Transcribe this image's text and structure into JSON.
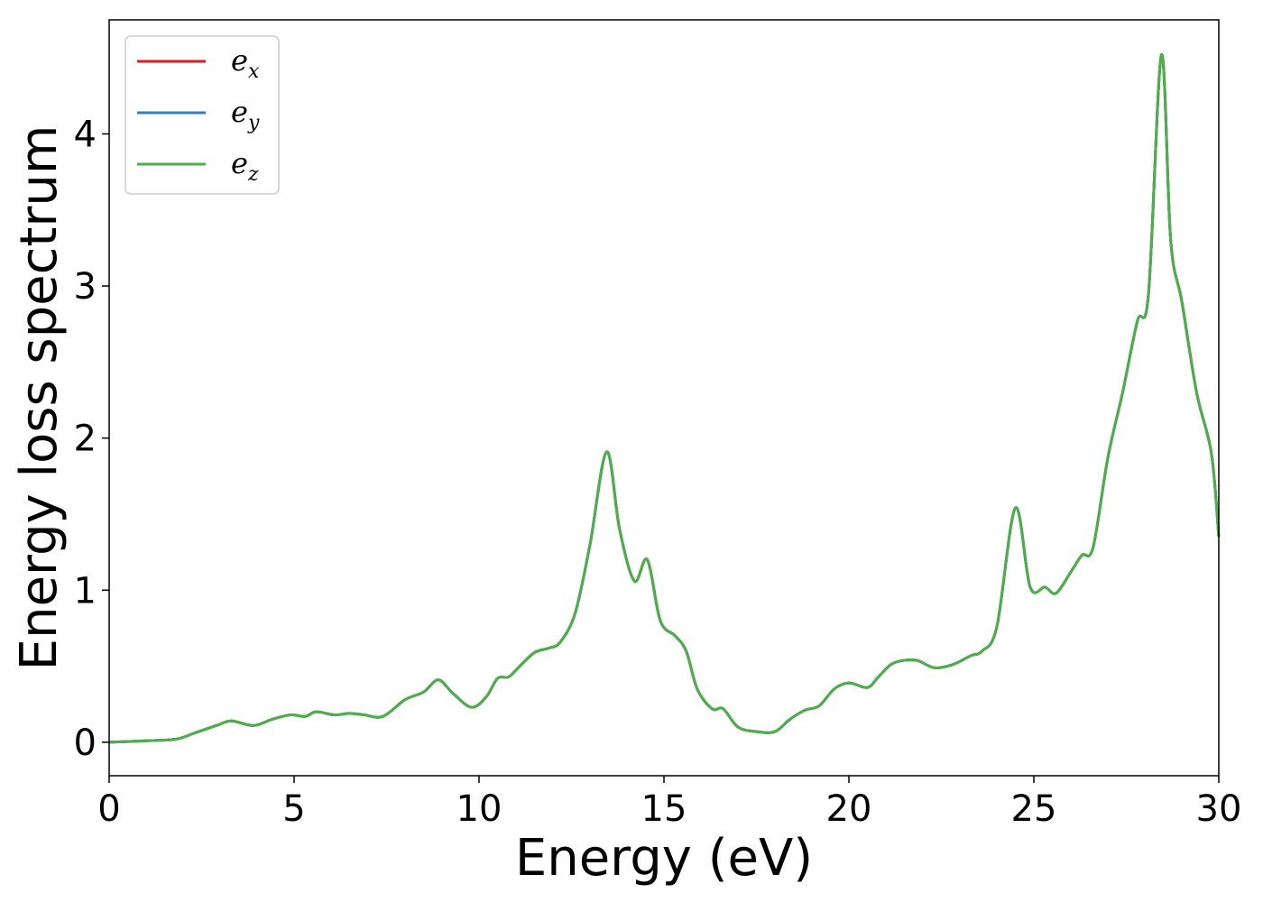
{
  "chart_data": {
    "type": "line",
    "xlabel": "Energy (eV)",
    "ylabel": "Energy loss spectrum",
    "xlim": [
      0,
      30
    ],
    "ylim": [
      -0.22,
      4.75
    ],
    "xticks": [
      "0",
      "5",
      "10",
      "15",
      "20",
      "25",
      "30"
    ],
    "yticks": [
      "0",
      "1",
      "2",
      "3",
      "4"
    ],
    "grid": false,
    "legend_position": "top-left",
    "series": [
      {
        "name_main": "e",
        "name_sub": "x",
        "color": "#e41a1c",
        "x": [
          0,
          1,
          1.8,
          2.3,
          2.9,
          3.3,
          3.9,
          4.4,
          4.9,
          5.3,
          5.6,
          6.1,
          6.5,
          6.9,
          7.4,
          8.0,
          8.5,
          8.9,
          9.3,
          9.8,
          10.2,
          10.5,
          10.8,
          11.1,
          11.5,
          11.9,
          12.2,
          12.6,
          13.0,
          13.45,
          13.8,
          14.2,
          14.55,
          14.9,
          15.3,
          15.6,
          15.9,
          16.3,
          16.6,
          17.0,
          17.5,
          18.0,
          18.4,
          18.8,
          19.2,
          19.6,
          20.0,
          20.5,
          20.8,
          21.2,
          21.8,
          22.3,
          22.8,
          23.3,
          23.6,
          24.0,
          24.5,
          24.9,
          25.3,
          25.6,
          26.0,
          26.3,
          26.6,
          27.0,
          27.4,
          27.8,
          28.1,
          28.45,
          28.7,
          29.0,
          29.4,
          29.8,
          30.0
        ],
        "values": [
          0,
          0.01,
          0.02,
          0.06,
          0.11,
          0.14,
          0.11,
          0.15,
          0.18,
          0.17,
          0.2,
          0.18,
          0.19,
          0.18,
          0.17,
          0.28,
          0.33,
          0.41,
          0.32,
          0.23,
          0.3,
          0.42,
          0.43,
          0.5,
          0.59,
          0.62,
          0.66,
          0.85,
          1.3,
          1.91,
          1.4,
          1.06,
          1.2,
          0.8,
          0.7,
          0.6,
          0.35,
          0.22,
          0.22,
          0.1,
          0.07,
          0.07,
          0.15,
          0.21,
          0.24,
          0.35,
          0.39,
          0.36,
          0.43,
          0.52,
          0.54,
          0.49,
          0.51,
          0.57,
          0.6,
          0.76,
          1.54,
          1.02,
          1.02,
          0.98,
          1.12,
          1.23,
          1.28,
          1.87,
          2.3,
          2.77,
          2.95,
          4.52,
          3.3,
          2.9,
          2.3,
          1.9,
          1.35
        ]
      },
      {
        "name_main": "e",
        "name_sub": "y",
        "color": "#377eb8",
        "x": [
          0,
          1,
          1.8,
          2.3,
          2.9,
          3.3,
          3.9,
          4.4,
          4.9,
          5.3,
          5.6,
          6.1,
          6.5,
          6.9,
          7.4,
          8.0,
          8.5,
          8.9,
          9.3,
          9.8,
          10.2,
          10.5,
          10.8,
          11.1,
          11.5,
          11.9,
          12.2,
          12.6,
          13.0,
          13.45,
          13.8,
          14.2,
          14.55,
          14.9,
          15.3,
          15.6,
          15.9,
          16.3,
          16.6,
          17.0,
          17.5,
          18.0,
          18.4,
          18.8,
          19.2,
          19.6,
          20.0,
          20.5,
          20.8,
          21.2,
          21.8,
          22.3,
          22.8,
          23.3,
          23.6,
          24.0,
          24.5,
          24.9,
          25.3,
          25.6,
          26.0,
          26.3,
          26.6,
          27.0,
          27.4,
          27.8,
          28.1,
          28.45,
          28.7,
          29.0,
          29.4,
          29.8,
          30.0
        ],
        "values": [
          0,
          0.01,
          0.02,
          0.06,
          0.11,
          0.14,
          0.11,
          0.15,
          0.18,
          0.17,
          0.2,
          0.18,
          0.19,
          0.18,
          0.17,
          0.28,
          0.33,
          0.41,
          0.32,
          0.23,
          0.3,
          0.42,
          0.43,
          0.5,
          0.59,
          0.62,
          0.66,
          0.85,
          1.3,
          1.91,
          1.4,
          1.06,
          1.2,
          0.8,
          0.7,
          0.6,
          0.35,
          0.22,
          0.22,
          0.1,
          0.07,
          0.07,
          0.15,
          0.21,
          0.24,
          0.35,
          0.39,
          0.36,
          0.43,
          0.52,
          0.54,
          0.49,
          0.51,
          0.57,
          0.6,
          0.76,
          1.54,
          1.02,
          1.02,
          0.98,
          1.12,
          1.23,
          1.28,
          1.87,
          2.3,
          2.77,
          2.95,
          4.52,
          3.3,
          2.9,
          2.3,
          1.9,
          1.35
        ]
      },
      {
        "name_main": "e",
        "name_sub": "z",
        "color": "#4daf4a",
        "x": [
          0,
          1,
          1.8,
          2.3,
          2.9,
          3.3,
          3.9,
          4.4,
          4.9,
          5.3,
          5.6,
          6.1,
          6.5,
          6.9,
          7.4,
          8.0,
          8.5,
          8.9,
          9.3,
          9.8,
          10.2,
          10.5,
          10.8,
          11.1,
          11.5,
          11.9,
          12.2,
          12.6,
          13.0,
          13.45,
          13.8,
          14.2,
          14.55,
          14.9,
          15.3,
          15.6,
          15.9,
          16.3,
          16.6,
          17.0,
          17.5,
          18.0,
          18.4,
          18.8,
          19.2,
          19.6,
          20.0,
          20.5,
          20.8,
          21.2,
          21.8,
          22.3,
          22.8,
          23.3,
          23.6,
          24.0,
          24.5,
          24.9,
          25.3,
          25.6,
          26.0,
          26.3,
          26.6,
          27.0,
          27.4,
          27.8,
          28.1,
          28.45,
          28.7,
          29.0,
          29.4,
          29.8,
          30.0
        ],
        "values": [
          0,
          0.01,
          0.02,
          0.06,
          0.11,
          0.14,
          0.11,
          0.15,
          0.18,
          0.17,
          0.2,
          0.18,
          0.19,
          0.18,
          0.17,
          0.28,
          0.33,
          0.41,
          0.32,
          0.23,
          0.3,
          0.42,
          0.43,
          0.5,
          0.59,
          0.62,
          0.66,
          0.85,
          1.3,
          1.91,
          1.4,
          1.06,
          1.2,
          0.8,
          0.7,
          0.6,
          0.35,
          0.22,
          0.22,
          0.1,
          0.07,
          0.07,
          0.15,
          0.21,
          0.24,
          0.35,
          0.39,
          0.36,
          0.43,
          0.52,
          0.54,
          0.49,
          0.51,
          0.57,
          0.6,
          0.76,
          1.54,
          1.02,
          1.02,
          0.98,
          1.12,
          1.23,
          1.28,
          1.87,
          2.3,
          2.77,
          2.95,
          4.52,
          3.3,
          2.9,
          2.3,
          1.9,
          1.35
        ]
      }
    ]
  }
}
